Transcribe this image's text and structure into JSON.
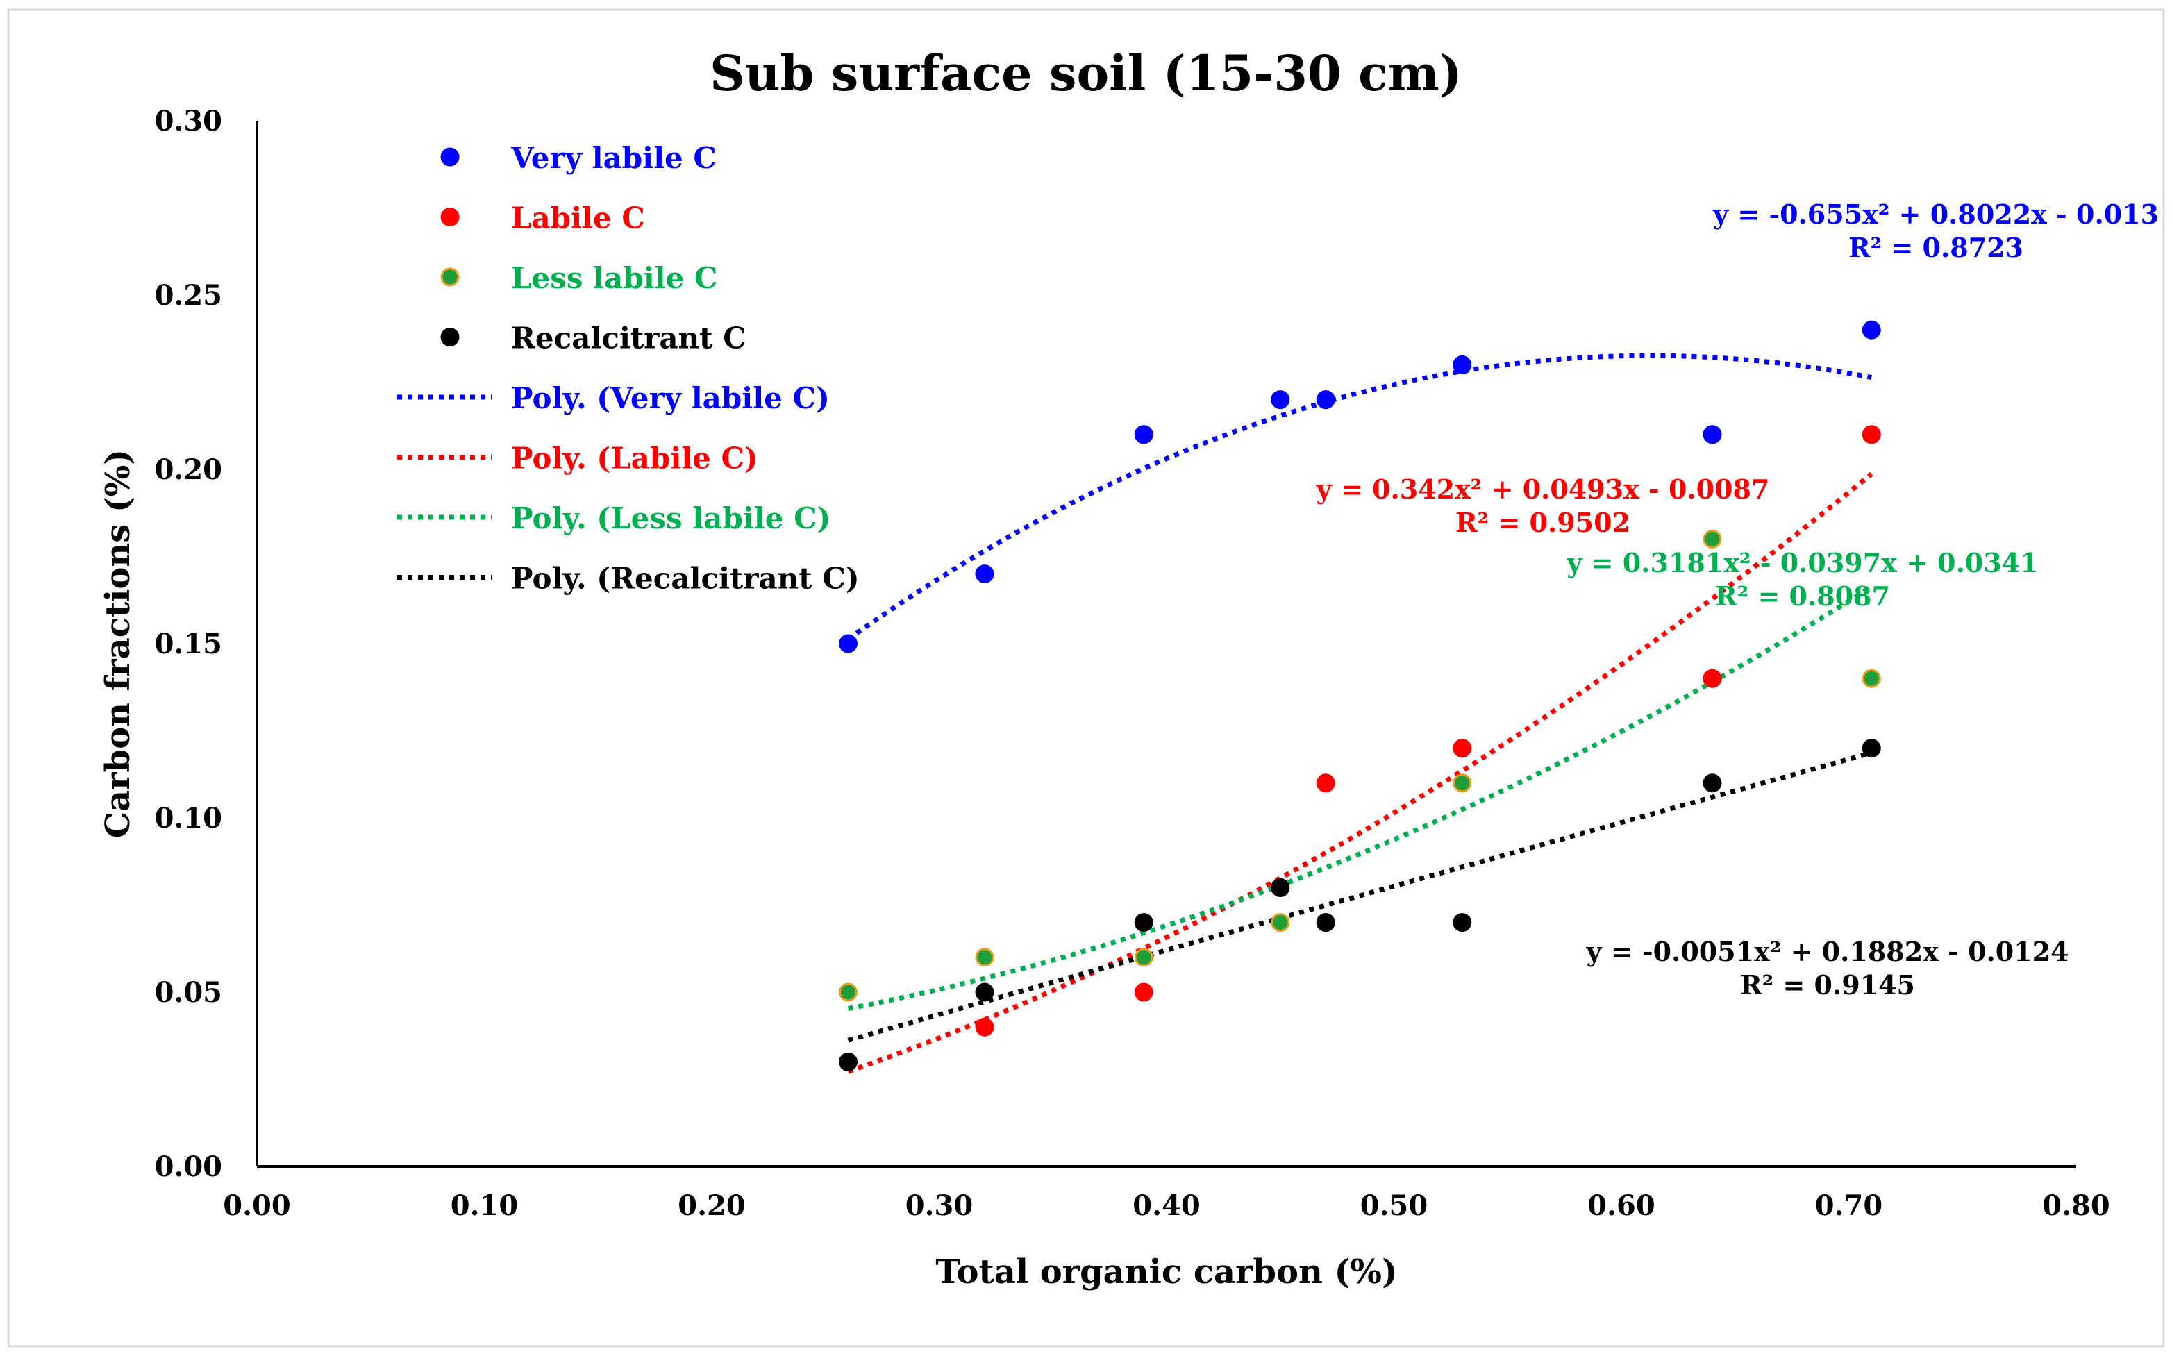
{
  "chart_data": {
    "type": "scatter",
    "title": "Sub surface soil (15-30 cm)",
    "xlabel": "Total organic carbon (%)",
    "ylabel": "Carbon fractions (%)",
    "xlim": [
      0,
      0.8
    ],
    "ylim": [
      0,
      0.3
    ],
    "x_ticks": [
      "0.00",
      "0.10",
      "0.20",
      "0.30",
      "0.40",
      "0.50",
      "0.60",
      "0.70",
      "0.80"
    ],
    "y_ticks": [
      "0.00",
      "0.05",
      "0.10",
      "0.15",
      "0.20",
      "0.25",
      "0.30"
    ],
    "legend_position": "top-left",
    "series": [
      {
        "name": "Very labile C",
        "color": "#0000ff",
        "edge": "#0000ff",
        "points": [
          [
            0.26,
            0.15
          ],
          [
            0.32,
            0.17
          ],
          [
            0.39,
            0.21
          ],
          [
            0.45,
            0.22
          ],
          [
            0.47,
            0.22
          ],
          [
            0.53,
            0.23
          ],
          [
            0.64,
            0.21
          ],
          [
            0.71,
            0.24
          ]
        ],
        "trend_name": "Poly. (Very labile C)",
        "trend": [
          -0.655,
          0.8022,
          -0.013
        ],
        "equation": "y = -0.655x² + 0.8022x - 0.013",
        "r2": "R² = 0.8723"
      },
      {
        "name": "Labile C",
        "color": "#ff0000",
        "edge": "#ff0000",
        "points": [
          [
            0.26,
            0.03
          ],
          [
            0.32,
            0.04
          ],
          [
            0.39,
            0.05
          ],
          [
            0.45,
            0.08
          ],
          [
            0.47,
            0.11
          ],
          [
            0.53,
            0.12
          ],
          [
            0.64,
            0.14
          ],
          [
            0.71,
            0.21
          ]
        ],
        "trend_name": "Poly. (Labile C)",
        "trend": [
          0.342,
          0.0493,
          -0.0087
        ],
        "equation": "y = 0.342x² + 0.0493x - 0.0087",
        "r2": "R² = 0.9502"
      },
      {
        "name": "Less labile C",
        "color": "#1f9e3a",
        "edge": "#e0a020",
        "points": [
          [
            0.26,
            0.05
          ],
          [
            0.32,
            0.06
          ],
          [
            0.39,
            0.06
          ],
          [
            0.45,
            0.07
          ],
          [
            0.47,
            0.07
          ],
          [
            0.53,
            0.11
          ],
          [
            0.64,
            0.18
          ],
          [
            0.71,
            0.14
          ]
        ],
        "trend_name": "Poly. (Less labile C)",
        "trend": [
          0.3181,
          -0.0397,
          0.0341
        ],
        "equation": "y = 0.3181x² - 0.0397x + 0.0341",
        "r2": "R² = 0.8087"
      },
      {
        "name": "Recalcitrant C",
        "color": "#000000",
        "edge": "#000000",
        "points": [
          [
            0.26,
            0.03
          ],
          [
            0.32,
            0.05
          ],
          [
            0.39,
            0.07
          ],
          [
            0.45,
            0.08
          ],
          [
            0.47,
            0.07
          ],
          [
            0.53,
            0.07
          ],
          [
            0.64,
            0.11
          ],
          [
            0.71,
            0.12
          ]
        ],
        "trend_name": "Poly. (Recalcitrant C)",
        "trend": [
          -0.0051,
          0.1882,
          -0.0124
        ],
        "equation": "y = -0.0051x² + 0.1882x - 0.0124",
        "r2": "R² = 0.9145"
      }
    ]
  }
}
